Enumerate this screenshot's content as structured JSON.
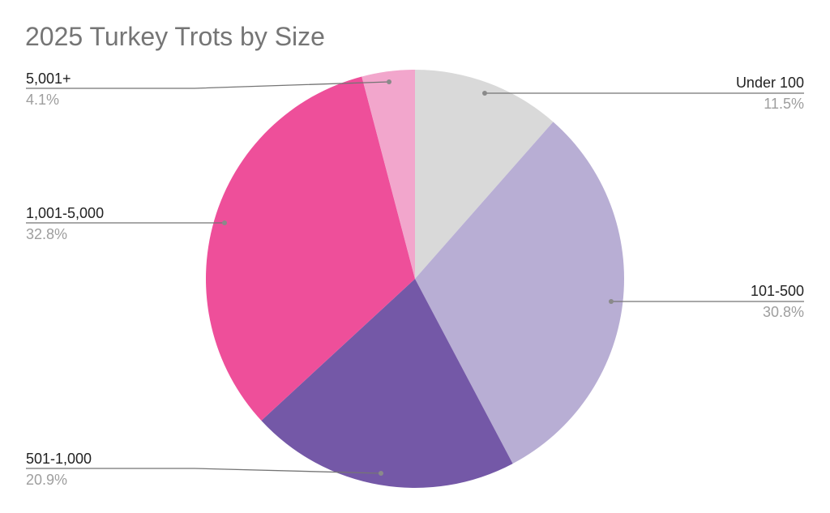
{
  "chart_data": {
    "type": "pie",
    "title": "2025 Turkey Trots by Size",
    "categories": [
      "Under 100",
      "101-500",
      "501-1,000",
      "1,001-5,000",
      "5,001+"
    ],
    "values": [
      11.5,
      30.8,
      20.9,
      32.8,
      4.1
    ],
    "value_labels": [
      "11.5%",
      "30.8%",
      "20.9%",
      "32.8%",
      "4.1%"
    ],
    "colors": [
      "#d9d9d9",
      "#b8aed4",
      "#7458a7",
      "#ee4f9a",
      "#f2a6cc"
    ],
    "start_angle": "12 o'clock",
    "direction": "clockwise",
    "legend": "none (labels with leader lines)",
    "xlabel": "",
    "ylabel": ""
  },
  "title": "2025 Turkey Trots by Size",
  "labels": {
    "under_100": {
      "name": "Under 100",
      "pct": "11.5%"
    },
    "s101_500": {
      "name": "101-500",
      "pct": "30.8%"
    },
    "s501_1000": {
      "name": "501-1,000",
      "pct": "20.9%"
    },
    "s1001_5000": {
      "name": "1,001-5,000",
      "pct": "32.8%"
    },
    "s5001_plus": {
      "name": "5,001+",
      "pct": "4.1%"
    }
  }
}
